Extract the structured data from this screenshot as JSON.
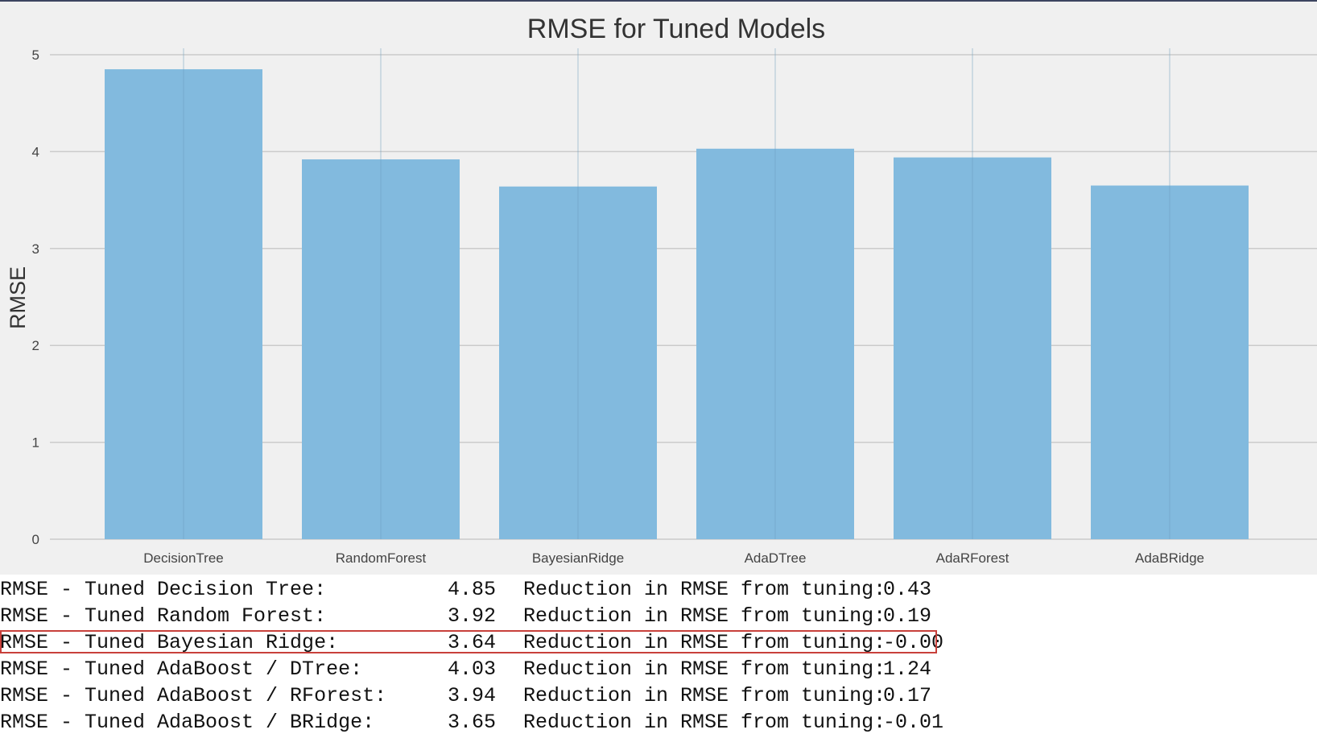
{
  "chart_data": {
    "type": "bar",
    "title": "RMSE for Tuned Models",
    "xlabel": "",
    "ylabel": "RMSE",
    "categories": [
      "DecisionTree",
      "RandomForest",
      "BayesianRidge",
      "AdaDTree",
      "AdaRForest",
      "AdaBRidge"
    ],
    "values": [
      4.85,
      3.92,
      3.64,
      4.03,
      3.94,
      3.65
    ],
    "ylim": [
      0,
      5.1
    ],
    "yticks": [
      0,
      1,
      2,
      3,
      4,
      5
    ],
    "grid": true,
    "bar_color": "#82bade",
    "background": "#f0f0f0",
    "grid_color": "#cbcbcb"
  },
  "output": {
    "highlight_color": "#c8403b",
    "rows": [
      {
        "label": "RMSE - Tuned Decision Tree:",
        "value": "4.85",
        "reduction_label": "Reduction in RMSE from tuning:",
        "reduction": "0.43",
        "highlighted": false
      },
      {
        "label": "RMSE - Tuned Random Forest:",
        "value": "3.92",
        "reduction_label": "Reduction in RMSE from tuning:",
        "reduction": "0.19",
        "highlighted": false
      },
      {
        "label": "RMSE - Tuned Bayesian Ridge:",
        "value": "3.64",
        "reduction_label": "Reduction in RMSE from tuning:",
        "reduction": "-0.00",
        "highlighted": true
      },
      {
        "label": "RMSE - Tuned AdaBoost / DTree:",
        "value": "4.03",
        "reduction_label": "Reduction in RMSE from tuning:",
        "reduction": "1.24",
        "highlighted": false
      },
      {
        "label": "RMSE - Tuned AdaBoost / RForest:",
        "value": "3.94",
        "reduction_label": "Reduction in RMSE from tuning:",
        "reduction": "0.17",
        "highlighted": false
      },
      {
        "label": "RMSE - Tuned AdaBoost / BRidge:",
        "value": "3.65",
        "reduction_label": "Reduction in RMSE from tuning:",
        "reduction": "-0.01",
        "highlighted": false
      }
    ]
  }
}
